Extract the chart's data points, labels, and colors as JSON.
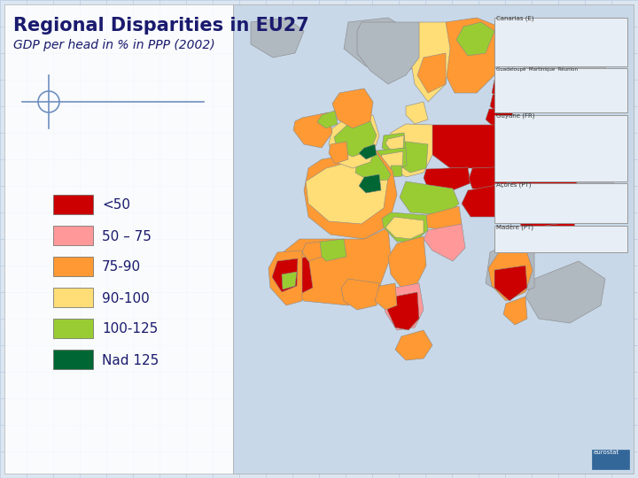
{
  "title": "Regional Disparities in EU27",
  "subtitle": "GDP per head in % in PPP (2002)",
  "title_color": "#1a1a6e",
  "subtitle_color": "#555555",
  "background_color": "#dce6f1",
  "panel_color": "#ffffff",
  "grid_color": "#b8cce4",
  "legend_items": [
    {
      "label": "<50",
      "color": "#cc0000"
    },
    {
      "label": "50 – 75",
      "color": "#ff9999"
    },
    {
      "label": "75-90",
      "color": "#ff9933"
    },
    {
      "label": "90-100",
      "color": "#ffdd77"
    },
    {
      "label": "100-125",
      "color": "#99cc33"
    },
    {
      "label": "Nad 125",
      "color": "#006633"
    }
  ],
  "figsize": [
    7.2,
    5.4
  ],
  "dpi": 100
}
